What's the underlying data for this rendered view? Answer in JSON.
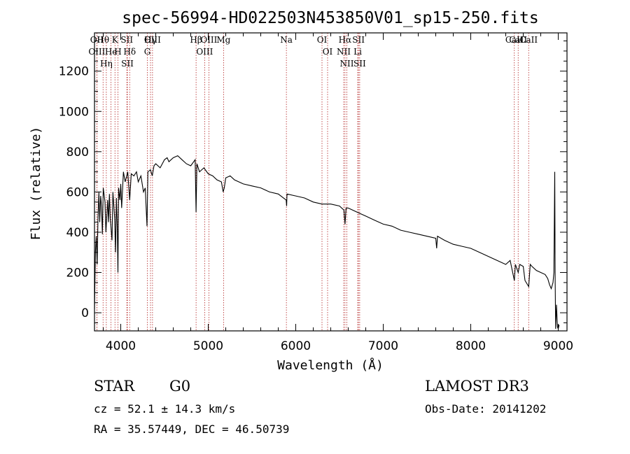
{
  "chart_data": {
    "type": "line",
    "title": "spec-56994-HD022503N453850V01_sp15-250.fits",
    "xlabel": "Wavelength (Å)",
    "ylabel": "Flux (relative)",
    "xlim": [
      3700,
      9100
    ],
    "ylim": [
      -90,
      1390
    ],
    "xticks": [
      4000,
      5000,
      6000,
      7000,
      8000,
      9000
    ],
    "yticks": [
      0,
      200,
      400,
      600,
      800,
      1000,
      1200
    ],
    "series": [
      {
        "name": "flux",
        "x": [
          3700,
          3710,
          3720,
          3730,
          3740,
          3750,
          3760,
          3770,
          3780,
          3790,
          3800,
          3820,
          3830,
          3850,
          3860,
          3870,
          3880,
          3900,
          3910,
          3930,
          3940,
          3950,
          3960,
          3968,
          3975,
          3990,
          4000,
          4010,
          4030,
          4050,
          4080,
          4102,
          4120,
          4150,
          4180,
          4200,
          4230,
          4260,
          4280,
          4300,
          4310,
          4340,
          4360,
          4380,
          4400,
          4450,
          4500,
          4530,
          4550,
          4600,
          4650,
          4700,
          4750,
          4800,
          4850,
          4861,
          4870,
          4900,
          4950,
          5000,
          5050,
          5100,
          5150,
          5170,
          5183,
          5200,
          5250,
          5300,
          5400,
          5500,
          5600,
          5700,
          5800,
          5890,
          5896,
          5900,
          6000,
          6100,
          6200,
          6300,
          6400,
          6500,
          6550,
          6563,
          6575,
          6600,
          6700,
          6800,
          6900,
          7000,
          7100,
          7200,
          7300,
          7400,
          7500,
          7600,
          7610,
          7620,
          7700,
          7800,
          7900,
          8000,
          8100,
          8200,
          8300,
          8400,
          8450,
          8498,
          8510,
          8542,
          8560,
          8600,
          8620,
          8662,
          8680,
          8700,
          8750,
          8800,
          8850,
          8880,
          8900,
          8920,
          8940,
          8950,
          8960,
          8965,
          8970,
          8975,
          8980,
          8990,
          9000,
          9010
        ],
        "y": [
          20,
          300,
          380,
          240,
          470,
          600,
          450,
          580,
          530,
          390,
          620,
          550,
          400,
          560,
          450,
          590,
          470,
          360,
          600,
          470,
          300,
          570,
          430,
          200,
          620,
          560,
          640,
          520,
          700,
          650,
          700,
          560,
          690,
          680,
          700,
          650,
          680,
          600,
          620,
          430,
          700,
          710,
          680,
          730,
          740,
          720,
          760,
          770,
          750,
          770,
          780,
          760,
          740,
          730,
          760,
          500,
          740,
          700,
          720,
          690,
          680,
          660,
          650,
          600,
          620,
          670,
          680,
          660,
          640,
          630,
          620,
          600,
          590,
          560,
          530,
          590,
          580,
          570,
          550,
          540,
          540,
          530,
          510,
          440,
          520,
          520,
          500,
          480,
          460,
          440,
          430,
          410,
          400,
          390,
          380,
          370,
          320,
          380,
          360,
          340,
          330,
          320,
          300,
          280,
          260,
          240,
          260,
          160,
          240,
          200,
          240,
          230,
          160,
          130,
          240,
          230,
          210,
          200,
          190,
          170,
          140,
          120,
          150,
          200,
          700,
          160,
          -80,
          -20,
          40,
          -70,
          -80,
          -60
        ]
      }
    ],
    "spectral_lines": [
      {
        "label": "Hθ",
        "wavelength": 3798
      },
      {
        "label": "OII",
        "wavelength": 3727
      },
      {
        "label": "OIII",
        "wavelength": 3727
      },
      {
        "label": "K",
        "wavelength": 3934
      },
      {
        "label": "He",
        "wavelength": 3889
      },
      {
        "label": "Hη",
        "wavelength": 3835
      },
      {
        "label": "SII",
        "wavelength": 4070
      },
      {
        "label": "H",
        "wavelength": 3968
      },
      {
        "label": "Hδ",
        "wavelength": 4102
      },
      {
        "label": "SII",
        "wavelength": 4076
      },
      {
        "label": "OIII",
        "wavelength": 4363
      },
      {
        "label": "Hγ",
        "wavelength": 4340
      },
      {
        "label": "G",
        "wavelength": 4304
      },
      {
        "label": "Hβ",
        "wavelength": 4861
      },
      {
        "label": "OIII",
        "wavelength": 5007
      },
      {
        "label": "OIII",
        "wavelength": 4959
      },
      {
        "label": "Mg",
        "wavelength": 5175
      },
      {
        "label": "Na",
        "wavelength": 5893
      },
      {
        "label": "OI",
        "wavelength": 6300
      },
      {
        "label": "OI",
        "wavelength": 6364
      },
      {
        "label": "Hα",
        "wavelength": 6563
      },
      {
        "label": "NII",
        "wavelength": 6548
      },
      {
        "label": "NII",
        "wavelength": 6584
      },
      {
        "label": "SII",
        "wavelength": 6717
      },
      {
        "label": "Li",
        "wavelength": 6708
      },
      {
        "label": "SII",
        "wavelength": 6731
      },
      {
        "label": "CaII",
        "wavelength": 8542
      },
      {
        "label": "CaII",
        "wavelength": 8498
      },
      {
        "label": "CaII",
        "wavelength": 8662
      }
    ]
  },
  "info": {
    "object_class": "STAR",
    "subclass": "G0",
    "cz": "cz = 52.1 ± 14.3 km/s",
    "radec": "RA =  35.57449, DEC =  46.50739",
    "survey": "LAMOST DR3",
    "obs_date": "Obs-Date: 20141202"
  },
  "colors": {
    "line_marker": "#b22222",
    "spectrum": "#000000",
    "axis": "#000000"
  }
}
